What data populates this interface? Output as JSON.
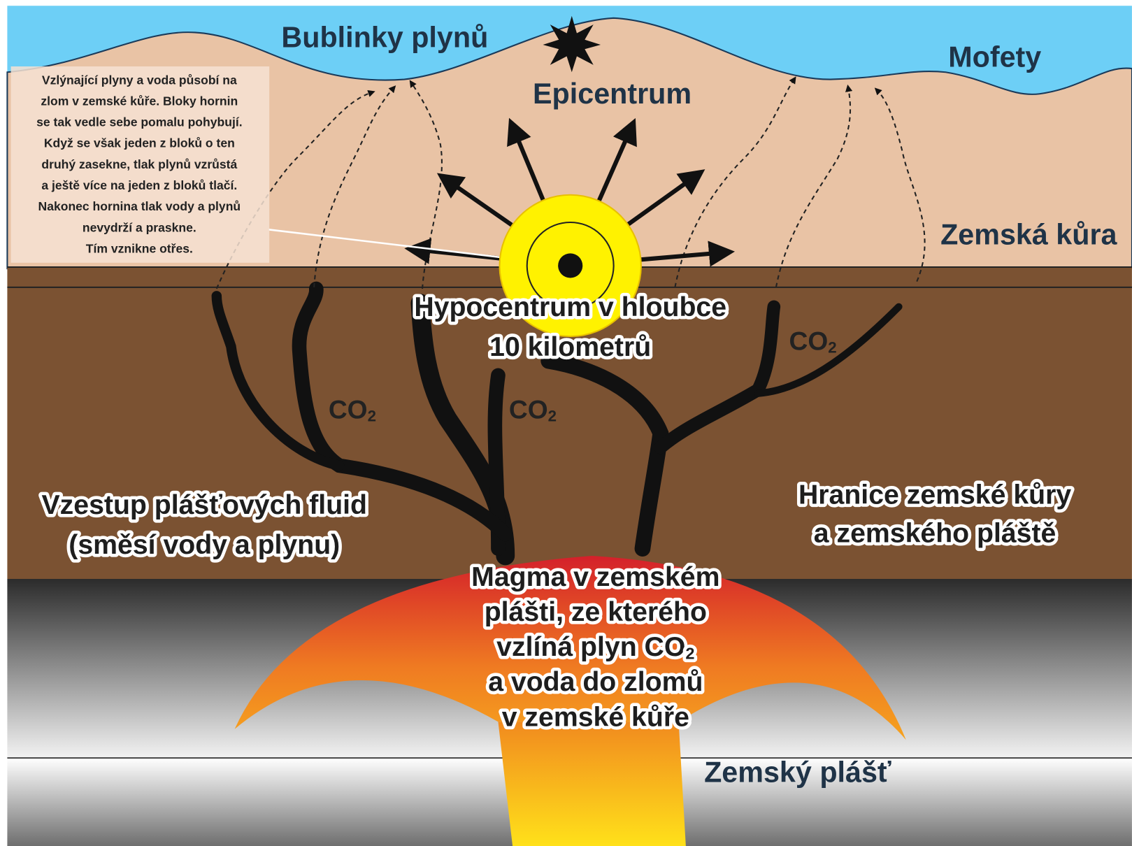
{
  "labels": {
    "bubbles": "Bublinky plynů",
    "epicenter": "Epicentrum",
    "mofety": "Mofety",
    "crust": "Zemská kůra",
    "hypocenter": [
      "Hypocentrum v hloubce",
      "10 kilometrů"
    ],
    "mantle": "Zemský plášť"
  },
  "note": [
    "Vzlýnající plyny a voda působí na",
    "zlom v zemské kůře. Bloky hornin",
    "se tak vedle sebe pomalu pohybují.",
    "Když se však jeden z bloků o ten",
    "druhý zasekne, tlak plynů vzrůstá",
    "a ještě více na jeden z bloků tlačí.",
    "Nakonec hornina tlak vody a plynů",
    "nevydrží a praskne.",
    "Tím vznikne otřes."
  ],
  "co2_labels": [
    {
      "text": "CO",
      "sub": "2"
    },
    {
      "text": "CO",
      "sub": "2"
    },
    {
      "text": "CO",
      "sub": "2"
    }
  ],
  "fluids": [
    "Vzestup plášťových fluid",
    "(směsí vody a plynu)"
  ],
  "boundary": [
    "Hranice zemské kůry",
    "a zemského pláště"
  ],
  "magma": [
    {
      "text": "Magma v zemském"
    },
    {
      "text": "plášti, ze kterého"
    },
    {
      "text": "vzlíná plyn CO",
      "sub": "2"
    },
    {
      "text": "a voda do zlomů"
    },
    {
      "text": "v zemské kůře"
    }
  ]
}
